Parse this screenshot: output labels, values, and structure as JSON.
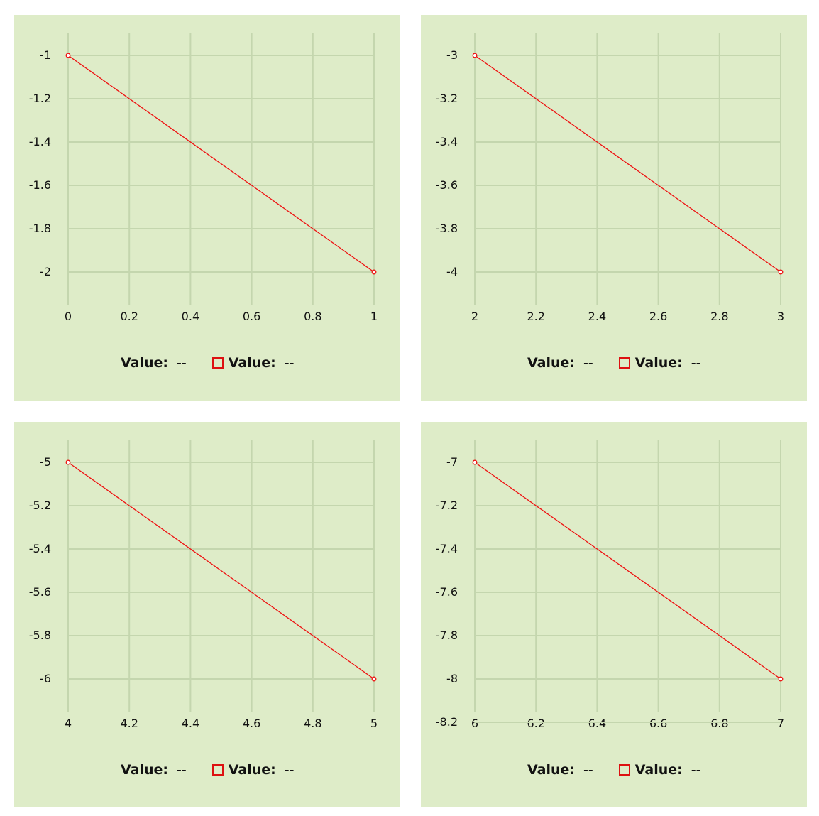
{
  "colors": {
    "panel_background": "#deecc8",
    "grid": "#c4d6ae",
    "series": "#ee1111"
  },
  "chart_data": [
    {
      "type": "line",
      "x_ticks": [
        "0",
        "0.2",
        "0.4",
        "0.6",
        "0.8",
        "1"
      ],
      "y_ticks": [
        "-1",
        "-1.2",
        "-1.4",
        "-1.6",
        "-1.8",
        "-2"
      ],
      "xlim": [
        0,
        1
      ],
      "ylim": [
        -2.15,
        -0.9
      ],
      "series": [
        {
          "x": [
            0,
            1
          ],
          "y": [
            -1,
            -2
          ],
          "color": "#ee1111"
        }
      ],
      "legend": [
        {
          "label": "Value:",
          "value": "--"
        },
        {
          "label": "Value:",
          "value": "--"
        }
      ],
      "grid": true
    },
    {
      "type": "line",
      "x_ticks": [
        "2",
        "2.2",
        "2.4",
        "2.6",
        "2.8",
        "3"
      ],
      "y_ticks": [
        "-3",
        "-3.2",
        "-3.4",
        "-3.6",
        "-3.8",
        "-4"
      ],
      "xlim": [
        2,
        3
      ],
      "ylim": [
        -4.15,
        -2.9
      ],
      "series": [
        {
          "x": [
            2,
            3
          ],
          "y": [
            -3,
            -4
          ],
          "color": "#ee1111"
        }
      ],
      "legend": [
        {
          "label": "Value:",
          "value": "--"
        },
        {
          "label": "Value:",
          "value": "--"
        }
      ],
      "grid": true
    },
    {
      "type": "line",
      "x_ticks": [
        "4",
        "4.2",
        "4.4",
        "4.6",
        "4.8",
        "5"
      ],
      "y_ticks": [
        "-5",
        "-5.2",
        "-5.4",
        "-5.6",
        "-5.8",
        "-6"
      ],
      "xlim": [
        4,
        5
      ],
      "ylim": [
        -6.15,
        -4.9
      ],
      "series": [
        {
          "x": [
            4,
            5
          ],
          "y": [
            -5,
            -6
          ],
          "color": "#ee1111"
        }
      ],
      "legend": [
        {
          "label": "Value:",
          "value": "--"
        },
        {
          "label": "Value:",
          "value": "--"
        }
      ],
      "grid": true
    },
    {
      "type": "line",
      "x_ticks": [
        "6",
        "6.2",
        "6.4",
        "6.6",
        "6.8",
        "7"
      ],
      "y_ticks": [
        "-7",
        "-7.2",
        "-7.4",
        "-7.6",
        "-7.8",
        "-8",
        "-8.2"
      ],
      "xlim": [
        6,
        7
      ],
      "ylim": [
        -8.25,
        -6.9
      ],
      "series": [
        {
          "x": [
            6,
            7
          ],
          "y": [
            -7,
            -8
          ],
          "color": "#ee1111"
        }
      ],
      "legend": [
        {
          "label": "Value:",
          "value": "--"
        },
        {
          "label": "Value:",
          "value": "--"
        }
      ],
      "grid": true
    }
  ]
}
